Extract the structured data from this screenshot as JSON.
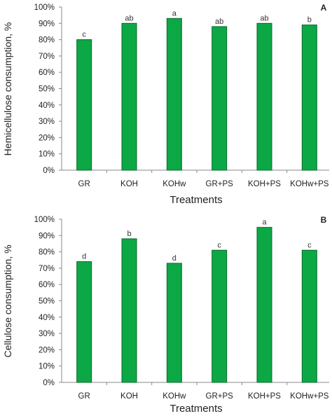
{
  "colors": {
    "bar_fill": "#0ca845",
    "bar_stroke": "#076b2b",
    "axis": "#8a8a8a"
  },
  "chart_data": [
    {
      "type": "bar",
      "panel_label": "A",
      "categories": [
        "GR",
        "KOH",
        "KOHw",
        "GR+PS",
        "KOH+PS",
        "KOHw+PS"
      ],
      "values": [
        80,
        90,
        93,
        88,
        90,
        89
      ],
      "bar_labels": [
        "c",
        "ab",
        "a",
        "ab",
        "ab",
        "b"
      ],
      "xlabel": "Treatments",
      "ylabel": "Hemicellulose consumption, %",
      "ylim": [
        0,
        100
      ],
      "yticks": [
        "0%",
        "10%",
        "20%",
        "30%",
        "40%",
        "50%",
        "60%",
        "70%",
        "80%",
        "90%",
        "100%"
      ],
      "grid": false
    },
    {
      "type": "bar",
      "panel_label": "B",
      "categories": [
        "GR",
        "KOH",
        "KOHw",
        "GR+PS",
        "KOH+PS",
        "KOHw+PS"
      ],
      "values": [
        74,
        88,
        73,
        81,
        95,
        81
      ],
      "bar_labels": [
        "d",
        "b",
        "d",
        "c",
        "a",
        "c"
      ],
      "xlabel": "Treatments",
      "ylabel": "Cellulose consumption, %",
      "ylim": [
        0,
        100
      ],
      "yticks": [
        "0%",
        "10%",
        "20%",
        "30%",
        "40%",
        "50%",
        "60%",
        "70%",
        "80%",
        "90%",
        "100%"
      ],
      "grid": false
    }
  ]
}
